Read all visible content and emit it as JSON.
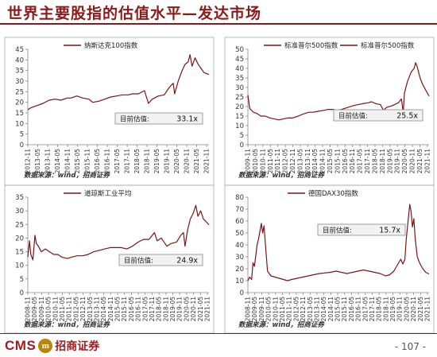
{
  "title": "世界主要股指的估值水平—发达市场",
  "source_text": "数据来源：wind，招商证券",
  "page_number": "- 107 -",
  "logo": {
    "cms": "CMS",
    "badge": "m",
    "cn": "招商证券"
  },
  "colors": {
    "line": "#7a1416",
    "accent": "#8b1a1a",
    "axis": "#888888"
  },
  "chart_data": [
    {
      "type": "line",
      "series": [
        {
          "name": "纳斯达克100指数"
        }
      ],
      "ylim": [
        0,
        45
      ],
      "yticks": [
        0,
        5,
        10,
        15,
        20,
        25,
        30,
        35,
        40,
        45
      ],
      "xticks": [
        "2012-11",
        "2013-05",
        "2013-11",
        "2014-05",
        "2014-11",
        "2015-05",
        "2015-11",
        "2016-05",
        "2016-11",
        "2017-05",
        "2017-11",
        "2018-05",
        "2018-11",
        "2019-05",
        "2019-11",
        "2020-05",
        "2020-11",
        "2021-05",
        "2021-11"
      ],
      "x_range": [
        2012.83,
        2021.95
      ],
      "points": [
        [
          2012.83,
          16.5
        ],
        [
          2013.0,
          17.5
        ],
        [
          2013.3,
          18.5
        ],
        [
          2013.6,
          19.5
        ],
        [
          2013.9,
          21
        ],
        [
          2014.2,
          21.5
        ],
        [
          2014.5,
          21
        ],
        [
          2014.8,
          22
        ],
        [
          2015.0,
          22
        ],
        [
          2015.3,
          23
        ],
        [
          2015.6,
          22
        ],
        [
          2015.9,
          21.5
        ],
        [
          2016.1,
          20
        ],
        [
          2016.4,
          20.5
        ],
        [
          2016.7,
          21.5
        ],
        [
          2017.0,
          22.5
        ],
        [
          2017.3,
          23
        ],
        [
          2017.6,
          23.5
        ],
        [
          2017.9,
          23.5
        ],
        [
          2018.1,
          24
        ],
        [
          2018.4,
          24
        ],
        [
          2018.7,
          25.5
        ],
        [
          2018.9,
          19.5
        ],
        [
          2019.1,
          21.5
        ],
        [
          2019.4,
          23
        ],
        [
          2019.7,
          23.5
        ],
        [
          2019.95,
          27
        ],
        [
          2020.15,
          29
        ],
        [
          2020.22,
          24
        ],
        [
          2020.4,
          30
        ],
        [
          2020.6,
          35
        ],
        [
          2020.75,
          38
        ],
        [
          2020.9,
          39
        ],
        [
          2021.0,
          42.5
        ],
        [
          2021.1,
          37
        ],
        [
          2021.25,
          41
        ],
        [
          2021.4,
          38
        ],
        [
          2021.55,
          36
        ],
        [
          2021.7,
          34
        ],
        [
          2021.95,
          33.1
        ]
      ],
      "annotation": {
        "label": "目前估值:",
        "value": "33.1x"
      }
    },
    {
      "type": "line",
      "series": [
        {
          "name": "标准普尔500指数"
        }
      ],
      "ylim": [
        0,
        50
      ],
      "yticks": [
        0,
        5,
        10,
        15,
        20,
        25,
        30,
        35,
        40,
        45,
        50
      ],
      "xticks": [
        "2009-11",
        "2010-05",
        "2010-11",
        "2011-05",
        "2011-11",
        "2012-05",
        "2012-11",
        "2013-05",
        "2013-11",
        "2014-05",
        "2014-11",
        "2015-05",
        "2015-11",
        "2016-05",
        "2016-11",
        "2017-05",
        "2017-11",
        "2018-05",
        "2018-11",
        "2019-05",
        "2019-11",
        "2020-05",
        "2020-11",
        "2021-05",
        "2021-11"
      ],
      "x_range": [
        2009.83,
        2021.95
      ],
      "points": [
        [
          2009.83,
          26
        ],
        [
          2009.95,
          19
        ],
        [
          2010.2,
          17
        ],
        [
          2010.4,
          16.5
        ],
        [
          2010.7,
          15
        ],
        [
          2011.0,
          15
        ],
        [
          2011.3,
          14
        ],
        [
          2011.6,
          13.5
        ],
        [
          2011.9,
          13
        ],
        [
          2012.2,
          13.5
        ],
        [
          2012.5,
          14
        ],
        [
          2012.8,
          14
        ],
        [
          2013.2,
          15
        ],
        [
          2013.5,
          16
        ],
        [
          2013.9,
          17
        ],
        [
          2014.2,
          17
        ],
        [
          2014.5,
          17.5
        ],
        [
          2014.9,
          18
        ],
        [
          2015.2,
          18.5
        ],
        [
          2015.5,
          18.5
        ],
        [
          2015.8,
          18
        ],
        [
          2016.1,
          18.5
        ],
        [
          2016.5,
          19.5
        ],
        [
          2016.9,
          20.5
        ],
        [
          2017.2,
          21
        ],
        [
          2017.5,
          21.5
        ],
        [
          2017.9,
          22
        ],
        [
          2018.1,
          22.5
        ],
        [
          2018.4,
          21.5
        ],
        [
          2018.7,
          21
        ],
        [
          2018.9,
          18
        ],
        [
          2019.1,
          19.5
        ],
        [
          2019.5,
          20.5
        ],
        [
          2019.9,
          22
        ],
        [
          2020.1,
          24
        ],
        [
          2020.22,
          17
        ],
        [
          2020.3,
          27
        ],
        [
          2020.5,
          33
        ],
        [
          2020.75,
          38
        ],
        [
          2020.95,
          40
        ],
        [
          2021.05,
          43
        ],
        [
          2021.15,
          41
        ],
        [
          2021.35,
          35
        ],
        [
          2021.5,
          32
        ],
        [
          2021.7,
          29
        ],
        [
          2021.95,
          25.5
        ]
      ],
      "annotation": {
        "label": "目前估值:",
        "value": "25.5x"
      }
    },
    {
      "type": "line",
      "series": [
        {
          "name": "道琼斯工业平均"
        }
      ],
      "ylim": [
        0,
        35
      ],
      "yticks": [
        0,
        5,
        10,
        15,
        20,
        25,
        30,
        35
      ],
      "xticks": [
        "2008-11",
        "2009-05",
        "2009-11",
        "2010-05",
        "2010-11",
        "2011-05",
        "2011-11",
        "2012-05",
        "2012-11",
        "2013-05",
        "2013-11",
        "2014-05",
        "2014-11",
        "2015-05",
        "2015-11",
        "2016-05",
        "2016-11",
        "2017-05",
        "2017-11",
        "2018-05",
        "2018-11",
        "2019-05",
        "2019-11",
        "2020-05",
        "2020-11",
        "2021-05",
        "2021-11"
      ],
      "x_range": [
        2008.83,
        2021.95
      ],
      "points": [
        [
          2008.83,
          13
        ],
        [
          2008.95,
          19
        ],
        [
          2009.05,
          14
        ],
        [
          2009.2,
          12
        ],
        [
          2009.35,
          21
        ],
        [
          2009.45,
          18
        ],
        [
          2009.6,
          17
        ],
        [
          2009.8,
          15
        ],
        [
          2010.1,
          16
        ],
        [
          2010.4,
          15
        ],
        [
          2010.7,
          14
        ],
        [
          2011.0,
          14
        ],
        [
          2011.3,
          13
        ],
        [
          2011.7,
          12.5
        ],
        [
          2012.0,
          13
        ],
        [
          2012.4,
          13.5
        ],
        [
          2012.8,
          13.5
        ],
        [
          2013.2,
          14
        ],
        [
          2013.6,
          15
        ],
        [
          2014.0,
          15.5
        ],
        [
          2014.4,
          16
        ],
        [
          2014.8,
          16.5
        ],
        [
          2015.2,
          16.5
        ],
        [
          2015.6,
          16.5
        ],
        [
          2016.0,
          16
        ],
        [
          2016.4,
          17
        ],
        [
          2016.8,
          18.5
        ],
        [
          2017.2,
          19.5
        ],
        [
          2017.6,
          19.5
        ],
        [
          2018.0,
          22
        ],
        [
          2018.2,
          19
        ],
        [
          2018.5,
          20
        ],
        [
          2018.9,
          17
        ],
        [
          2019.2,
          18
        ],
        [
          2019.6,
          18.5
        ],
        [
          2019.9,
          21
        ],
        [
          2020.1,
          22
        ],
        [
          2020.22,
          17
        ],
        [
          2020.4,
          23
        ],
        [
          2020.6,
          27
        ],
        [
          2020.8,
          29
        ],
        [
          2021.0,
          32
        ],
        [
          2021.15,
          28
        ],
        [
          2021.35,
          30
        ],
        [
          2021.55,
          27
        ],
        [
          2021.75,
          26
        ],
        [
          2021.95,
          24.9
        ]
      ],
      "annotation": {
        "label": "目前估值:",
        "value": "24.9x"
      }
    },
    {
      "type": "line",
      "series": [
        {
          "name": "德国DAX30指数"
        }
      ],
      "ylim": [
        0,
        80
      ],
      "yticks": [
        0,
        10,
        20,
        30,
        40,
        50,
        60,
        70,
        80
      ],
      "xticks": [
        "2008-11",
        "2009-05",
        "2009-11",
        "2010-05",
        "2010-11",
        "2011-05",
        "2011-11",
        "2012-05",
        "2012-11",
        "2013-05",
        "2013-11",
        "2014-05",
        "2014-11",
        "2015-05",
        "2015-11",
        "2016-05",
        "2016-11",
        "2017-05",
        "2017-11",
        "2018-05",
        "2018-11",
        "2019-05",
        "2019-11",
        "2020-05",
        "2020-11",
        "2021-05",
        "2021-11"
      ],
      "x_range": [
        2008.83,
        2021.95
      ],
      "points": [
        [
          2008.83,
          10
        ],
        [
          2008.95,
          13
        ],
        [
          2009.1,
          11
        ],
        [
          2009.2,
          25
        ],
        [
          2009.3,
          22
        ],
        [
          2009.5,
          40
        ],
        [
          2009.6,
          45
        ],
        [
          2009.8,
          58
        ],
        [
          2009.9,
          50
        ],
        [
          2010.0,
          56
        ],
        [
          2010.1,
          40
        ],
        [
          2010.25,
          18
        ],
        [
          2010.5,
          14
        ],
        [
          2010.8,
          13
        ],
        [
          2011.1,
          12
        ],
        [
          2011.4,
          11
        ],
        [
          2011.7,
          10
        ],
        [
          2012.0,
          11
        ],
        [
          2012.4,
          12
        ],
        [
          2012.8,
          13
        ],
        [
          2013.2,
          14
        ],
        [
          2013.6,
          15
        ],
        [
          2014.0,
          16
        ],
        [
          2014.4,
          16.5
        ],
        [
          2014.8,
          17
        ],
        [
          2015.2,
          18
        ],
        [
          2015.6,
          17
        ],
        [
          2016.0,
          16
        ],
        [
          2016.4,
          17
        ],
        [
          2016.8,
          18
        ],
        [
          2017.2,
          19
        ],
        [
          2017.6,
          18
        ],
        [
          2018.0,
          17
        ],
        [
          2018.4,
          16
        ],
        [
          2018.8,
          14
        ],
        [
          2019.1,
          15
        ],
        [
          2019.4,
          18
        ],
        [
          2019.7,
          24
        ],
        [
          2019.9,
          28
        ],
        [
          2020.05,
          24
        ],
        [
          2020.2,
          28
        ],
        [
          2020.3,
          45
        ],
        [
          2020.45,
          62
        ],
        [
          2020.55,
          74
        ],
        [
          2020.65,
          68
        ],
        [
          2020.75,
          55
        ],
        [
          2020.85,
          62
        ],
        [
          2020.95,
          45
        ],
        [
          2021.1,
          30
        ],
        [
          2021.3,
          24
        ],
        [
          2021.5,
          20
        ],
        [
          2021.7,
          17
        ],
        [
          2021.95,
          15.7
        ]
      ],
      "annotation": {
        "label": "目前估值:",
        "value": "15.7x"
      }
    }
  ]
}
